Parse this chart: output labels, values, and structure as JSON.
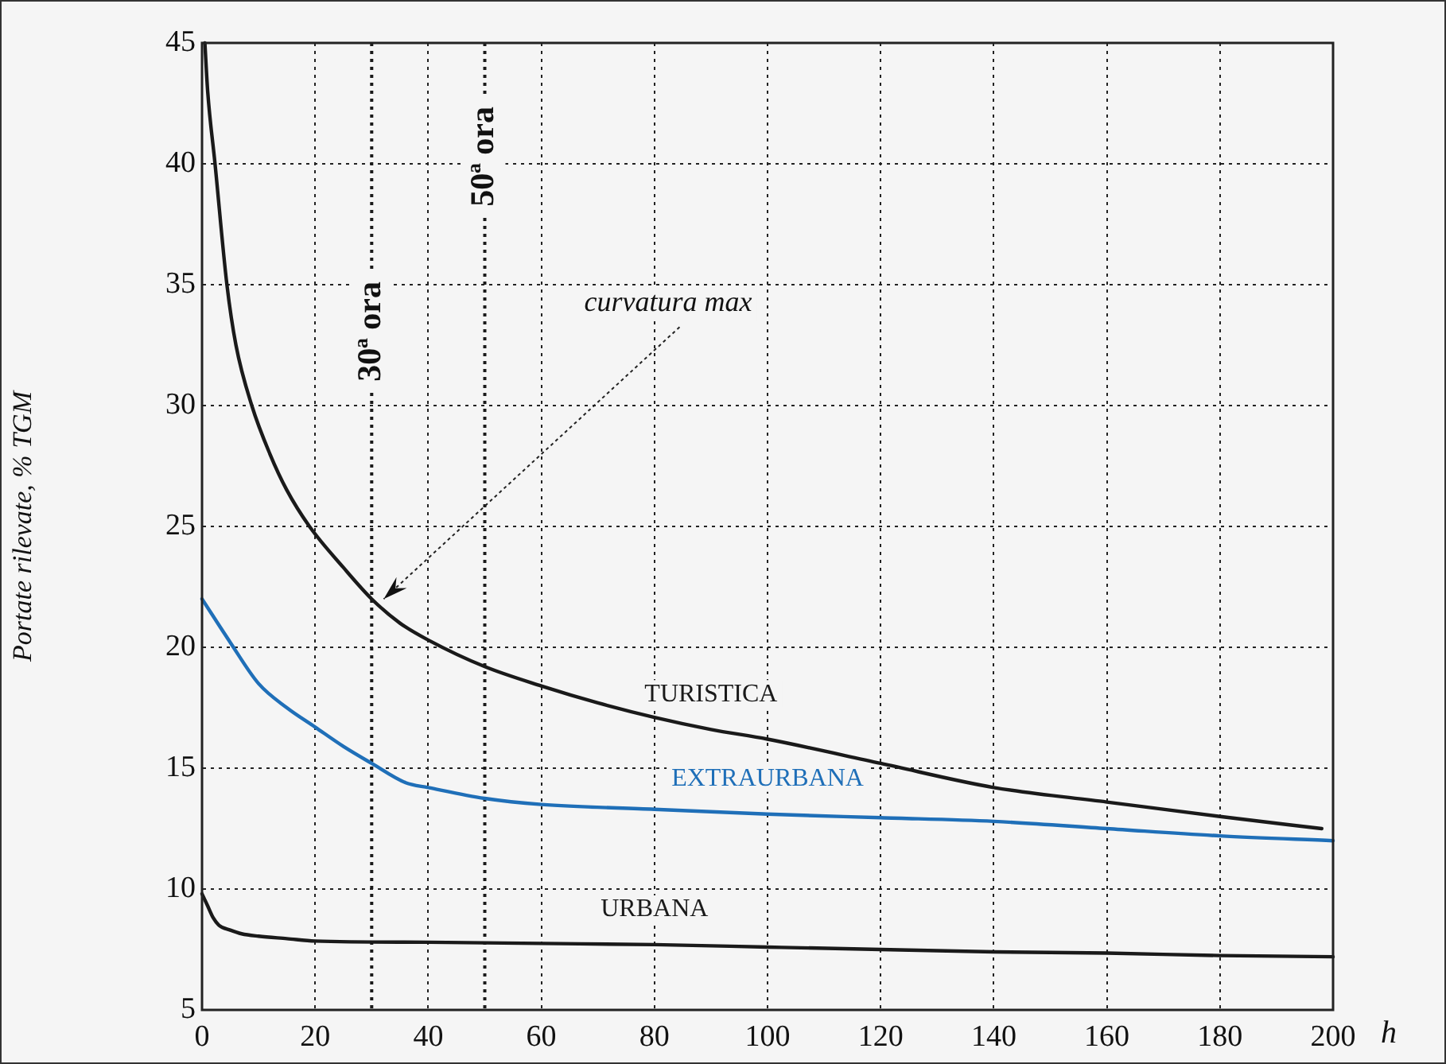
{
  "chart_data": {
    "type": "line",
    "xlabel": "h",
    "ylabel": "Portate rilevate, % TGM",
    "xlim": [
      0,
      200
    ],
    "ylim": [
      5,
      45
    ],
    "xticks": [
      0,
      20,
      40,
      60,
      80,
      100,
      120,
      140,
      160,
      180,
      200
    ],
    "yticks": [
      5,
      10,
      15,
      20,
      25,
      30,
      35,
      40,
      45
    ],
    "grid": true,
    "marker": "none",
    "line_style": "solid",
    "series": [
      {
        "name": "TURISTICA",
        "color": "#1a1a1a",
        "x": [
          0.5,
          1,
          2.3,
          4.4,
          6,
          8.8,
          12,
          15,
          19,
          25,
          30,
          35,
          40,
          50,
          60,
          70,
          80,
          90,
          100,
          120,
          140,
          160,
          180,
          198
        ],
        "values": [
          45,
          43,
          40,
          35,
          32.5,
          30,
          28,
          26.5,
          25,
          23.3,
          22,
          21,
          20.3,
          19.2,
          18.4,
          17.7,
          17.1,
          16.6,
          16.2,
          15.2,
          14.2,
          13.6,
          13,
          12.5
        ]
      },
      {
        "name": "EXTRAURBANA",
        "color": "#1f6fb8",
        "x": [
          0,
          5,
          10,
          15,
          20,
          25,
          30,
          36,
          40,
          50,
          60,
          80,
          100,
          120,
          140,
          160,
          180,
          200
        ],
        "values": [
          22,
          20.2,
          18.5,
          17.5,
          16.7,
          15.9,
          15.2,
          14.4,
          14.2,
          13.75,
          13.5,
          13.3,
          13.1,
          12.95,
          12.8,
          12.5,
          12.2,
          12
        ]
      },
      {
        "name": "URBANA",
        "color": "#1a1a1a",
        "x": [
          0,
          1,
          2,
          3,
          5,
          7,
          10,
          15,
          20,
          40,
          60,
          80,
          100,
          120,
          140,
          160,
          180,
          200
        ],
        "values": [
          9.8,
          9.3,
          8.8,
          8.5,
          8.3,
          8.15,
          8.05,
          7.95,
          7.85,
          7.8,
          7.75,
          7.7,
          7.6,
          7.5,
          7.4,
          7.35,
          7.25,
          7.2
        ]
      }
    ],
    "ref_lines": [
      {
        "axis": "x",
        "value": 30,
        "label": "30ª ora",
        "line_style": "dotted",
        "color": "#1a1a1a"
      },
      {
        "axis": "x",
        "value": 50,
        "label": "50ª ora",
        "line_style": "dotted",
        "color": "#1a1a1a"
      }
    ],
    "annotations": [
      {
        "text": "curvatura max",
        "x": 31,
        "y": 21.8
      }
    ]
  }
}
